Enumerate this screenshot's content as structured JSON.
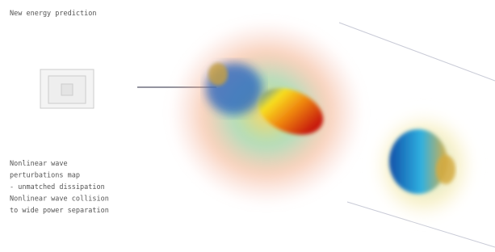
{
  "title": "New energy prediction",
  "caption": {
    "lines": [
      "Nonlinear wave",
      "perturbations map",
      "- unmatched dissipation",
      "Nonlinear wave collision",
      "to wide power separation"
    ]
  }
}
